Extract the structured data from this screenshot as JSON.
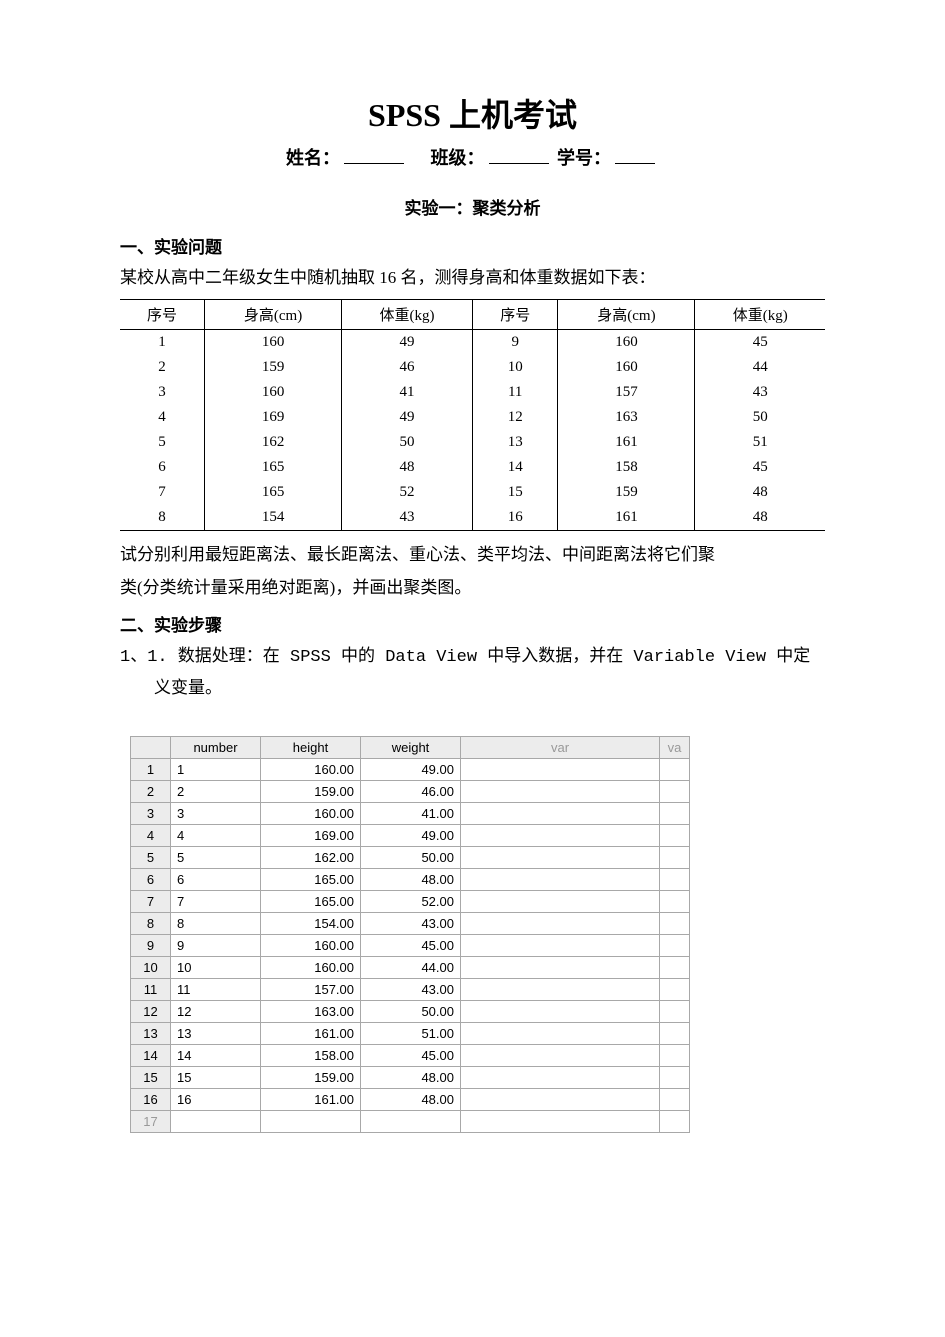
{
  "title": "SPSS 上机考试",
  "info": {
    "name_label": "姓名：",
    "class_label": "班级：",
    "id_label": "学号："
  },
  "subtitle": "实验一：聚类分析",
  "section1_head": "一、实验问题",
  "intro_text": "某校从高中二年级女生中随机抽取 16 名，测得身高和体重数据如下表：",
  "main_table": {
    "headers": [
      "序号",
      "身高(cm)",
      "体重(kg)",
      "序号",
      "身高(cm)",
      "体重(kg)"
    ],
    "rows": [
      [
        "1",
        "160",
        "49",
        "9",
        "160",
        "45"
      ],
      [
        "2",
        "159",
        "46",
        "10",
        "160",
        "44"
      ],
      [
        "3",
        "160",
        "41",
        "11",
        "157",
        "43"
      ],
      [
        "4",
        "169",
        "49",
        "12",
        "163",
        "50"
      ],
      [
        "5",
        "162",
        "50",
        "13",
        "161",
        "51"
      ],
      [
        "6",
        "165",
        "48",
        "14",
        "158",
        "45"
      ],
      [
        "7",
        "165",
        "52",
        "15",
        "159",
        "48"
      ],
      [
        "8",
        "154",
        "43",
        "16",
        "161",
        "48"
      ]
    ]
  },
  "after_table_1": "试分别利用最短距离法、最长距离法、重心法、类平均法、中间距离法将它们聚",
  "after_table_2": "类(分类统计量采用绝对距离)，并画出聚类图。",
  "section2_head": "二、实验步骤",
  "step1_line1": "1、1. 数据处理：在 SPSS 中的 Data View 中导入数据，并在 Variable View 中定",
  "step1_line2": "义变量。",
  "spss": {
    "headers": [
      "",
      "number",
      "height",
      "weight",
      "var",
      "va"
    ],
    "rows": [
      {
        "rn": "1",
        "number": "1",
        "height": "160.00",
        "weight": "49.00"
      },
      {
        "rn": "2",
        "number": "2",
        "height": "159.00",
        "weight": "46.00"
      },
      {
        "rn": "3",
        "number": "3",
        "height": "160.00",
        "weight": "41.00"
      },
      {
        "rn": "4",
        "number": "4",
        "height": "169.00",
        "weight": "49.00"
      },
      {
        "rn": "5",
        "number": "5",
        "height": "162.00",
        "weight": "50.00"
      },
      {
        "rn": "6",
        "number": "6",
        "height": "165.00",
        "weight": "48.00"
      },
      {
        "rn": "7",
        "number": "7",
        "height": "165.00",
        "weight": "52.00"
      },
      {
        "rn": "8",
        "number": "8",
        "height": "154.00",
        "weight": "43.00"
      },
      {
        "rn": "9",
        "number": "9",
        "height": "160.00",
        "weight": "45.00"
      },
      {
        "rn": "10",
        "number": "10",
        "height": "160.00",
        "weight": "44.00"
      },
      {
        "rn": "11",
        "number": "11",
        "height": "157.00",
        "weight": "43.00"
      },
      {
        "rn": "12",
        "number": "12",
        "height": "163.00",
        "weight": "50.00"
      },
      {
        "rn": "13",
        "number": "13",
        "height": "161.00",
        "weight": "51.00"
      },
      {
        "rn": "14",
        "number": "14",
        "height": "158.00",
        "weight": "45.00"
      },
      {
        "rn": "15",
        "number": "15",
        "height": "159.00",
        "weight": "48.00"
      },
      {
        "rn": "16",
        "number": "16",
        "height": "161.00",
        "weight": "48.00"
      }
    ],
    "empty_row": "17"
  }
}
